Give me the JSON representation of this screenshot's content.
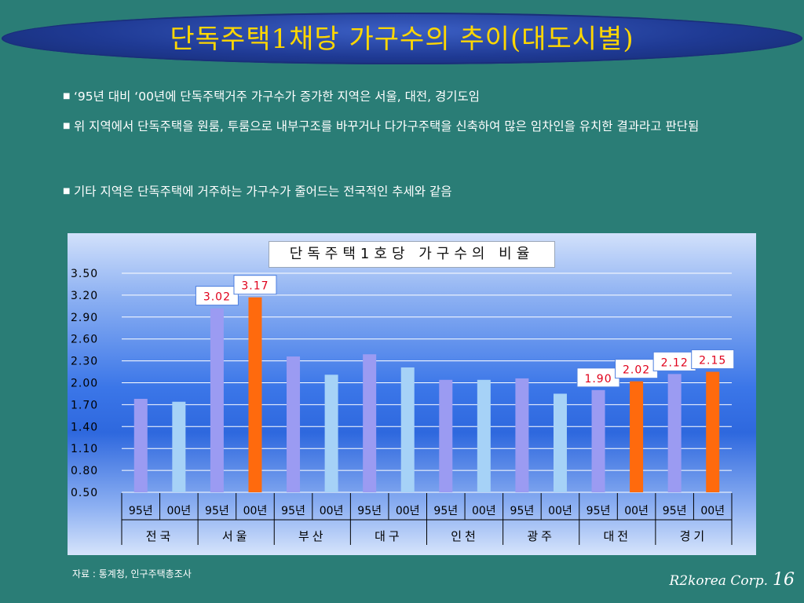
{
  "slide": {
    "title": "단독주택1채당 가구수의 추이(대도시별)",
    "bullets": [
      "‘95년 대비 ‘00년에 단독주택거주 가구수가 증가한 지역은 서울, 대전, 경기도임",
      "위 지역에서 단독주택을 원룸, 투룸으로 내부구조를 바꾸거나 다가구주택을 신축하여 많은 임차인을 유치한 결과라고 판단됨",
      "기타 지역은 단독주택에 거주하는 가구수가 줄어드는 전국적인 추세와  같음"
    ],
    "source": "자료 : 통계청, 인구주택총조사",
    "footer_company": "R2korea Corp.",
    "page_number": "16"
  },
  "colors": {
    "bar_95": "#9b9bf2",
    "bar_00": "#a6d2f7",
    "bar_highlight": "#ff6a0d",
    "label_text": "#e0001a"
  },
  "chart_data": {
    "type": "bar",
    "title": "단독주택1호당 가구수의 비율",
    "ylim": [
      0.5,
      3.5
    ],
    "yticks": [
      "0.50",
      "0.80",
      "1.10",
      "1.40",
      "1.70",
      "2.00",
      "2.30",
      "2.60",
      "2.90",
      "3.20",
      "3.50"
    ],
    "grid": true,
    "categories": [
      "95년",
      "00년",
      "95년",
      "00년",
      "95년",
      "00년",
      "95년",
      "00년",
      "95년",
      "00년",
      "95년",
      "00년",
      "95년",
      "00년",
      "95년",
      "00년"
    ],
    "groups": [
      "전국",
      "서울",
      "부산",
      "대구",
      "인천",
      "광주",
      "대전",
      "경기"
    ],
    "values": [
      1.78,
      1.74,
      3.02,
      3.17,
      2.36,
      2.11,
      2.39,
      2.21,
      2.04,
      2.04,
      2.06,
      1.85,
      1.9,
      2.02,
      2.12,
      2.15
    ],
    "highlighted": [
      3,
      13,
      15
    ],
    "data_labels": [
      {
        "index": 2,
        "text": "3.02"
      },
      {
        "index": 3,
        "text": "3.17"
      },
      {
        "index": 12,
        "text": "1.90"
      },
      {
        "index": 13,
        "text": "2.02"
      },
      {
        "index": 14,
        "text": "2.12"
      },
      {
        "index": 15,
        "text": "2.15"
      }
    ]
  }
}
